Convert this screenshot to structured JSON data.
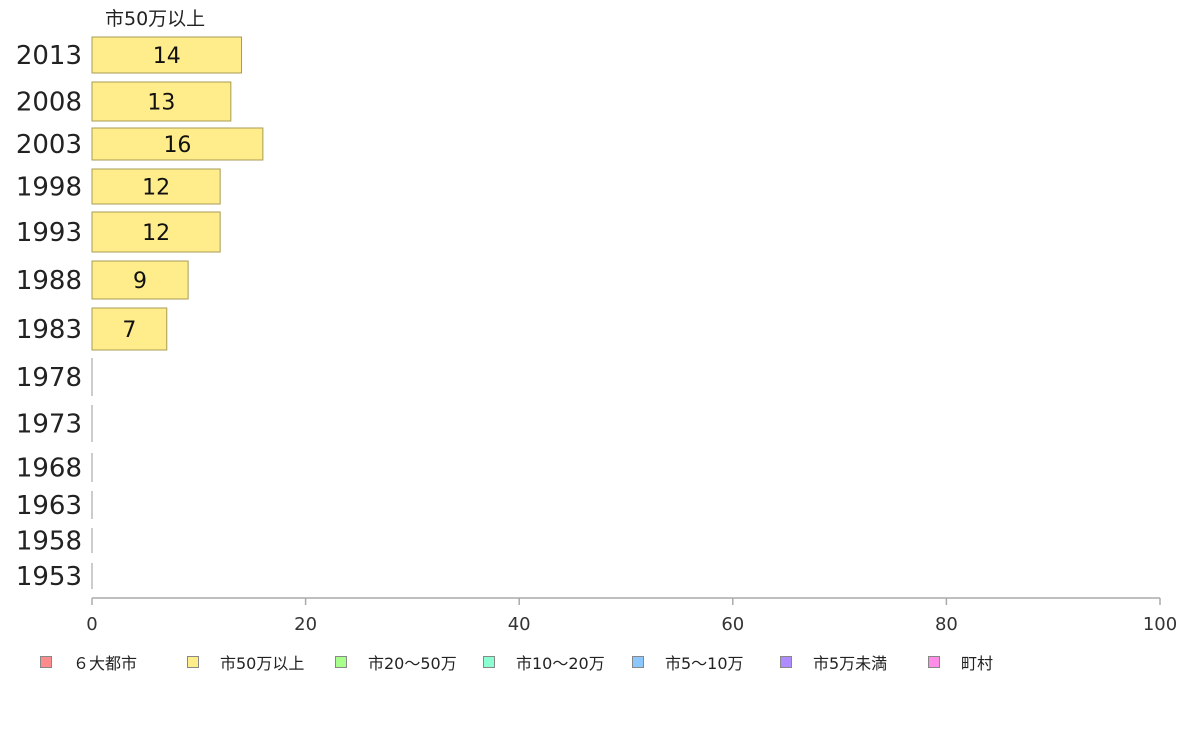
{
  "chart_data": {
    "type": "bar",
    "orientation": "horizontal",
    "series_label": "市50万以上",
    "categories": [
      "2013",
      "2008",
      "2003",
      "1998",
      "1993",
      "1988",
      "1983",
      "1978",
      "1973",
      "1968",
      "1963",
      "1958",
      "1953"
    ],
    "series": [
      {
        "name": "市50万以上",
        "values": [
          14,
          13,
          16,
          12,
          12,
          9,
          7,
          0,
          0,
          0,
          0,
          0,
          0
        ],
        "color": "#ffec8b"
      }
    ],
    "data_labels": [
      "14",
      "13",
      "16",
      "12",
      "12",
      "9",
      "7",
      "",
      "",
      "",
      "",
      "",
      ""
    ],
    "xlim": [
      0,
      100
    ],
    "xticks": [
      "0",
      "20",
      "40",
      "60",
      "80",
      "100"
    ],
    "grid": false,
    "legend_position": "bottom-left",
    "legend": [
      {
        "label": "６大都市",
        "color": "#ff8c8c"
      },
      {
        "label": "市50万以上",
        "color": "#ffec8b"
      },
      {
        "label": "市20～50万",
        "color": "#a8ff8c"
      },
      {
        "label": "市10～20万",
        "color": "#8cffd2"
      },
      {
        "label": "市5～10万",
        "color": "#8cc8ff"
      },
      {
        "label": "市5万未満",
        "color": "#ae8cff"
      },
      {
        "label": "町村",
        "color": "#ff8ce6"
      }
    ]
  }
}
